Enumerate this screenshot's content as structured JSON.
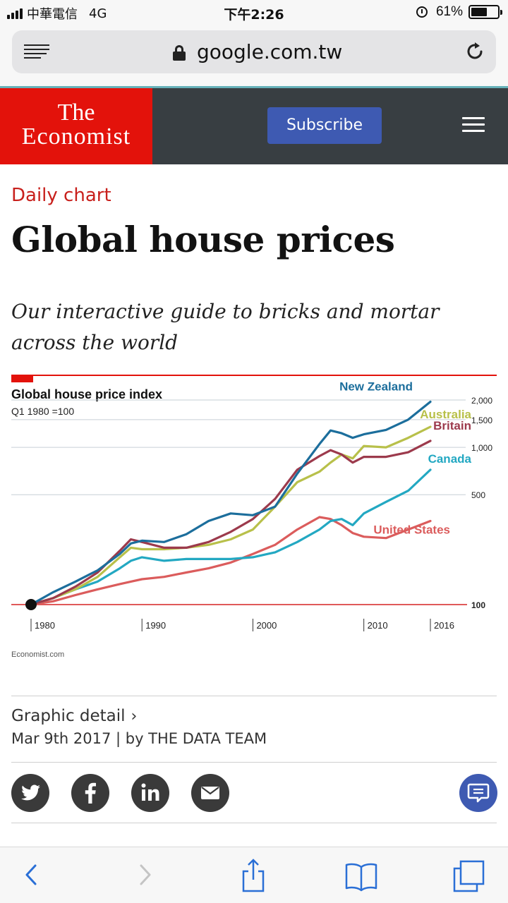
{
  "status_bar": {
    "carrier": "中華電信",
    "network": "4G",
    "time": "下午2:26",
    "battery": "61%",
    "battery_level": 0.61
  },
  "browser": {
    "url": "google.com.tw",
    "icons": [
      "reader-icon",
      "lock-icon",
      "reload-icon"
    ]
  },
  "site_header": {
    "logo_line1": "The",
    "logo_line2": "Economist",
    "subscribe_label": "Subscribe",
    "colors": {
      "logo_bg": "#e3120b",
      "header_bg": "#383e42",
      "subscribe_bg": "#3e5ab2"
    }
  },
  "article": {
    "kicker": "Daily chart",
    "headline": "Global house prices",
    "subhead": "Our interactive guide to bricks and mortar across the world",
    "section": "Graphic detail",
    "byline": "Mar 9th 2017 | by THE DATA TEAM"
  },
  "chart": {
    "title": "Global house price index",
    "subtitle": "Q1 1980 =100",
    "source": "Economist.com"
  },
  "chart_data": {
    "type": "line",
    "title": "Global house price index",
    "subtitle": "Q1 1980 =100",
    "y_ticks": [
      "100",
      "500",
      "1,000",
      "1,500",
      "2,000"
    ],
    "y_tick_values": [
      100,
      500,
      1000,
      1500,
      2000
    ],
    "x_tick_labels": [
      "1980",
      "1990",
      "2000",
      "2010",
      "2016"
    ],
    "x_tick_values": [
      1980,
      1990,
      2000,
      2010,
      2016
    ],
    "ylim": [
      100,
      2000
    ],
    "xlim": [
      1980,
      2016
    ],
    "y_scale": "log",
    "grid": true,
    "legend": "direct labels at line ends",
    "x": [
      1980,
      1982,
      1984,
      1986,
      1988,
      1989,
      1990,
      1992,
      1994,
      1996,
      1998,
      2000,
      2002,
      2004,
      2006,
      2007,
      2008,
      2009,
      2010,
      2012,
      2014,
      2016
    ],
    "series": [
      {
        "name": "New Zealand",
        "color": "#1c6e9c",
        "values": [
          100,
          120,
          140,
          165,
          210,
          245,
          255,
          250,
          280,
          340,
          380,
          370,
          420,
          680,
          1050,
          1280,
          1230,
          1150,
          1210,
          1290,
          1500,
          1950
        ]
      },
      {
        "name": "Australia",
        "color": "#b8c04a",
        "values": [
          100,
          110,
          125,
          150,
          200,
          230,
          225,
          225,
          230,
          240,
          260,
          300,
          420,
          600,
          700,
          800,
          900,
          850,
          1020,
          1000,
          1150,
          1350
        ]
      },
      {
        "name": "Britain",
        "color": "#9c3a4c",
        "values": [
          100,
          110,
          130,
          160,
          220,
          260,
          250,
          230,
          230,
          250,
          290,
          350,
          470,
          720,
          880,
          960,
          900,
          800,
          870,
          870,
          930,
          1100
        ]
      },
      {
        "name": "Canada",
        "color": "#23a8c2",
        "values": [
          100,
          110,
          125,
          140,
          170,
          190,
          200,
          190,
          195,
          195,
          195,
          200,
          215,
          250,
          300,
          340,
          350,
          320,
          380,
          450,
          530,
          720
        ]
      },
      {
        "name": "United States",
        "color": "#db5c5c",
        "values": [
          100,
          105,
          115,
          125,
          135,
          140,
          145,
          150,
          160,
          170,
          185,
          210,
          240,
          300,
          360,
          350,
          320,
          285,
          270,
          265,
          300,
          340
        ]
      }
    ]
  },
  "share": {
    "icons": [
      "twitter-icon",
      "facebook-icon",
      "linkedin-icon",
      "email-icon"
    ],
    "comment_icon": "comment-icon"
  },
  "toolbar": {
    "icons": [
      "back-icon",
      "forward-icon",
      "share-icon",
      "bookmarks-icon",
      "tabs-icon"
    ]
  }
}
